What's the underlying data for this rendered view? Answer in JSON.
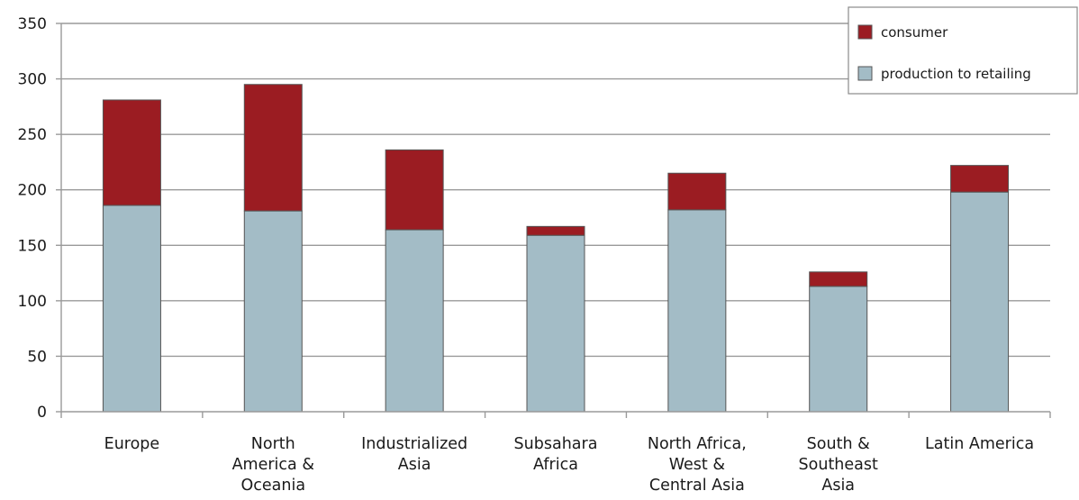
{
  "colors": {
    "consumer": "#9b1c22",
    "production": "#a3bcc6",
    "grid": "#9a9a9a",
    "bar_stroke": "#555555"
  },
  "chart_data": {
    "type": "bar",
    "stacked": true,
    "categories": [
      [
        "Europe"
      ],
      [
        "North",
        "America &",
        "Oceania"
      ],
      [
        "Industrialized",
        "Asia"
      ],
      [
        "Subsahara",
        "Africa"
      ],
      [
        "North Africa,",
        "West &",
        "Central Asia"
      ],
      [
        "South &",
        "Southeast",
        "Asia"
      ],
      [
        "Latin America"
      ]
    ],
    "series": [
      {
        "name": "production to retailing",
        "color": "#a3bcc6",
        "values": [
          186,
          181,
          164,
          159,
          182,
          113,
          198
        ]
      },
      {
        "name": "consumer",
        "color": "#9b1c22",
        "values": [
          95,
          114,
          72,
          8,
          33,
          13,
          24
        ]
      }
    ],
    "legend": {
      "position": "top-right",
      "entries": [
        "consumer",
        "production to retailing"
      ]
    },
    "ylim": [
      0,
      350
    ],
    "yticks": [
      "0",
      "50",
      "100",
      "150",
      "200",
      "250",
      "300",
      "350"
    ],
    "grid": true,
    "title": "",
    "xlabel": "",
    "ylabel": ""
  }
}
